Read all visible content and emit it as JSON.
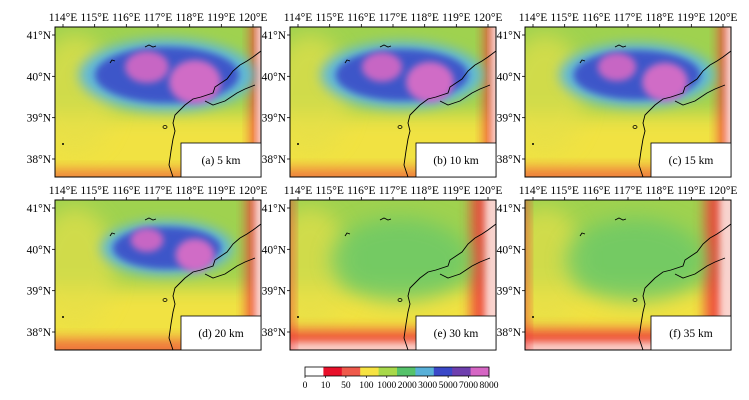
{
  "figure": {
    "lon_ticks": [
      "114°E",
      "115°E",
      "116°E",
      "117°E",
      "118°E",
      "119°E",
      "120°E"
    ],
    "lat_ticks": [
      "41°N",
      "40°N",
      "39°N",
      "38°N"
    ],
    "panels": [
      {
        "id": "a",
        "label": "(a) 5 km",
        "depth_km": 5,
        "lon_labels": true,
        "lat_labels": true,
        "anomaly_level": 1.0
      },
      {
        "id": "b",
        "label": "(b) 10 km",
        "depth_km": 10,
        "lon_labels": true,
        "lat_labels": true,
        "anomaly_level": 0.92
      },
      {
        "id": "c",
        "label": "(c) 15 km",
        "depth_km": 15,
        "lon_labels": true,
        "lat_labels": true,
        "anomaly_level": 0.88
      },
      {
        "id": "d",
        "label": "(d) 20 km",
        "depth_km": 20,
        "lon_labels": true,
        "lat_labels": true,
        "anomaly_level": 0.75
      },
      {
        "id": "e",
        "label": "(e) 30 km",
        "depth_km": 30,
        "lon_labels": true,
        "lat_labels": true,
        "anomaly_level": 0.15
      },
      {
        "id": "f",
        "label": "(f) 35 km",
        "depth_km": 35,
        "lon_labels": true,
        "lat_labels": true,
        "anomaly_level": 0.1
      }
    ],
    "colorbar": {
      "tick_labels": [
        "0",
        "10",
        "50",
        "100",
        "1000",
        "2000",
        "3000",
        "5000",
        "7000",
        "8000"
      ],
      "colors": [
        "#ffffff",
        "#e8102a",
        "#ef5a4b",
        "#f7e342",
        "#a8d94a",
        "#55c26a",
        "#58b0d8",
        "#3a48c8",
        "#6e3fae",
        "#d666c4"
      ]
    }
  }
}
